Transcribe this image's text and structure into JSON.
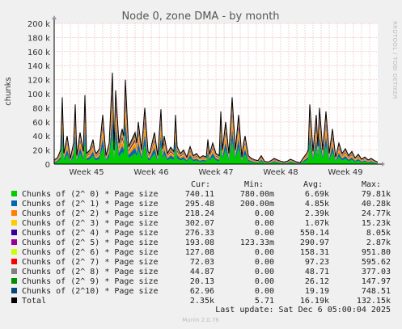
{
  "title": "Node 0, zone DMA - by month",
  "ylabel": "chunks",
  "watermark": "RRDTOOL / TOBI OETIKER",
  "version": "Munin 2.0.76",
  "last_update": "Last update:  Sat Dec  6 05:00:04 2025",
  "legend_headers": [
    "Cur:",
    "Min:",
    "Avg:",
    "Max:"
  ],
  "legend": [
    {
      "name": "Chunks of (2^ 0) * Page size",
      "color": "#00cc00",
      "cur": "740.11",
      "min": "780.00m",
      "avg": "6.69k",
      "max": "79.81k"
    },
    {
      "name": "Chunks of (2^ 1) * Page size",
      "color": "#0066b3",
      "cur": "295.48",
      "min": "200.00m",
      "avg": "4.85k",
      "max": "40.28k"
    },
    {
      "name": "Chunks of (2^ 2) * Page size",
      "color": "#ff8000",
      "cur": "218.24",
      "min": "0.00",
      "avg": "2.39k",
      "max": "24.77k"
    },
    {
      "name": "Chunks of (2^ 3) * Page size",
      "color": "#ffcc00",
      "cur": "302.07",
      "min": "0.00",
      "avg": "1.07k",
      "max": "15.23k"
    },
    {
      "name": "Chunks of (2^ 4) * Page size",
      "color": "#330099",
      "cur": "276.33",
      "min": "0.00",
      "avg": "550.14",
      "max": "8.05k"
    },
    {
      "name": "Chunks of (2^ 5) * Page size",
      "color": "#990099",
      "cur": "193.08",
      "min": "123.33m",
      "avg": "290.97",
      "max": "2.87k"
    },
    {
      "name": "Chunks of (2^ 6) * Page size",
      "color": "#ccff00",
      "cur": "127.08",
      "min": "0.00",
      "avg": "158.31",
      "max": "951.80"
    },
    {
      "name": "Chunks of (2^ 7) * Page size",
      "color": "#ff0000",
      "cur": "72.03",
      "min": "0.00",
      "avg": "97.23",
      "max": "595.62"
    },
    {
      "name": "Chunks of (2^ 8) * Page size",
      "color": "#808080",
      "cur": "44.87",
      "min": "0.00",
      "avg": "48.71",
      "max": "377.03"
    },
    {
      "name": "Chunks of (2^ 9) * Page size",
      "color": "#008f00",
      "cur": "20.13",
      "min": "0.00",
      "avg": "26.12",
      "max": "147.97"
    },
    {
      "name": "Chunks of (2^10) * Page size",
      "color": "#00487d",
      "cur": "62.96",
      "min": "0.00",
      "avg": "19.19",
      "max": "748.51"
    },
    {
      "name": "Total",
      "color": "#000000",
      "cur": "2.35k",
      "min": "5.71",
      "avg": "16.19k",
      "max": "132.15k"
    }
  ],
  "chart_data": {
    "type": "area",
    "title": "Node 0, zone DMA - by month",
    "ylabel": "chunks",
    "ylim": [
      0,
      200000
    ],
    "yticks": [
      0,
      20000,
      40000,
      60000,
      80000,
      100000,
      120000,
      140000,
      160000,
      180000,
      200000
    ],
    "ytick_labels": [
      "0",
      "20 k",
      "40 k",
      "60 k",
      "80 k",
      "100 k",
      "120 k",
      "140 k",
      "160 k",
      "180 k",
      "200 k"
    ],
    "x_tick_labels": [
      "Week 45",
      "Week 46",
      "Week 47",
      "Week 48",
      "Week 49"
    ],
    "x_tick_positions": [
      0.1,
      0.3,
      0.5,
      0.7,
      0.9
    ],
    "grid": true,
    "series_total": {
      "name": "Total",
      "x": [
        0.0,
        0.01,
        0.02,
        0.025,
        0.03,
        0.04,
        0.05,
        0.06,
        0.065,
        0.07,
        0.08,
        0.09,
        0.095,
        0.1,
        0.11,
        0.12,
        0.125,
        0.13,
        0.14,
        0.15,
        0.16,
        0.17,
        0.18,
        0.185,
        0.19,
        0.2,
        0.21,
        0.215,
        0.22,
        0.23,
        0.24,
        0.25,
        0.255,
        0.26,
        0.27,
        0.28,
        0.29,
        0.295,
        0.3,
        0.31,
        0.32,
        0.33,
        0.335,
        0.34,
        0.35,
        0.36,
        0.37,
        0.375,
        0.38,
        0.39,
        0.4,
        0.41,
        0.42,
        0.43,
        0.44,
        0.45,
        0.46,
        0.47,
        0.475,
        0.48,
        0.49,
        0.5,
        0.51,
        0.515,
        0.52,
        0.53,
        0.54,
        0.55,
        0.56,
        0.57,
        0.58,
        0.585,
        0.59,
        0.6,
        0.61,
        0.62,
        0.63,
        0.64,
        0.65,
        0.66,
        0.67,
        0.68,
        0.69,
        0.7,
        0.71,
        0.72,
        0.73,
        0.74,
        0.75,
        0.76,
        0.77,
        0.78,
        0.785,
        0.79,
        0.8,
        0.81,
        0.815,
        0.82,
        0.83,
        0.84,
        0.85,
        0.86,
        0.87,
        0.88,
        0.89,
        0.9,
        0.91,
        0.92,
        0.93,
        0.94,
        0.95,
        0.96,
        0.97,
        0.98,
        0.99,
        1.0
      ],
      "y": [
        6000,
        9000,
        20000,
        95000,
        15000,
        40000,
        8000,
        30000,
        85000,
        12000,
        45000,
        18000,
        98000,
        15000,
        20000,
        35000,
        20000,
        15000,
        22000,
        70000,
        12000,
        30000,
        130000,
        20000,
        105000,
        30000,
        50000,
        40000,
        120000,
        25000,
        35000,
        45000,
        30000,
        60000,
        20000,
        80000,
        18000,
        15000,
        25000,
        45000,
        12000,
        78000,
        22000,
        40000,
        15000,
        24000,
        18000,
        70000,
        25000,
        15000,
        20000,
        10000,
        25000,
        12000,
        15000,
        9000,
        12000,
        10000,
        35000,
        14000,
        30000,
        15000,
        12000,
        75000,
        20000,
        60000,
        15000,
        95000,
        20000,
        70000,
        10000,
        30000,
        40000,
        12000,
        8000,
        6000,
        5000,
        12000,
        4000,
        3000,
        5000,
        8000,
        6000,
        4000,
        3000,
        4000,
        7000,
        5000,
        3000,
        2000,
        9000,
        15000,
        20000,
        85000,
        18000,
        70000,
        25000,
        80000,
        20000,
        75000,
        15000,
        50000,
        10000,
        30000,
        15000,
        22000,
        12000,
        18000,
        9000,
        14000,
        7000,
        10000,
        6000,
        8000,
        5000,
        3000
      ]
    }
  }
}
